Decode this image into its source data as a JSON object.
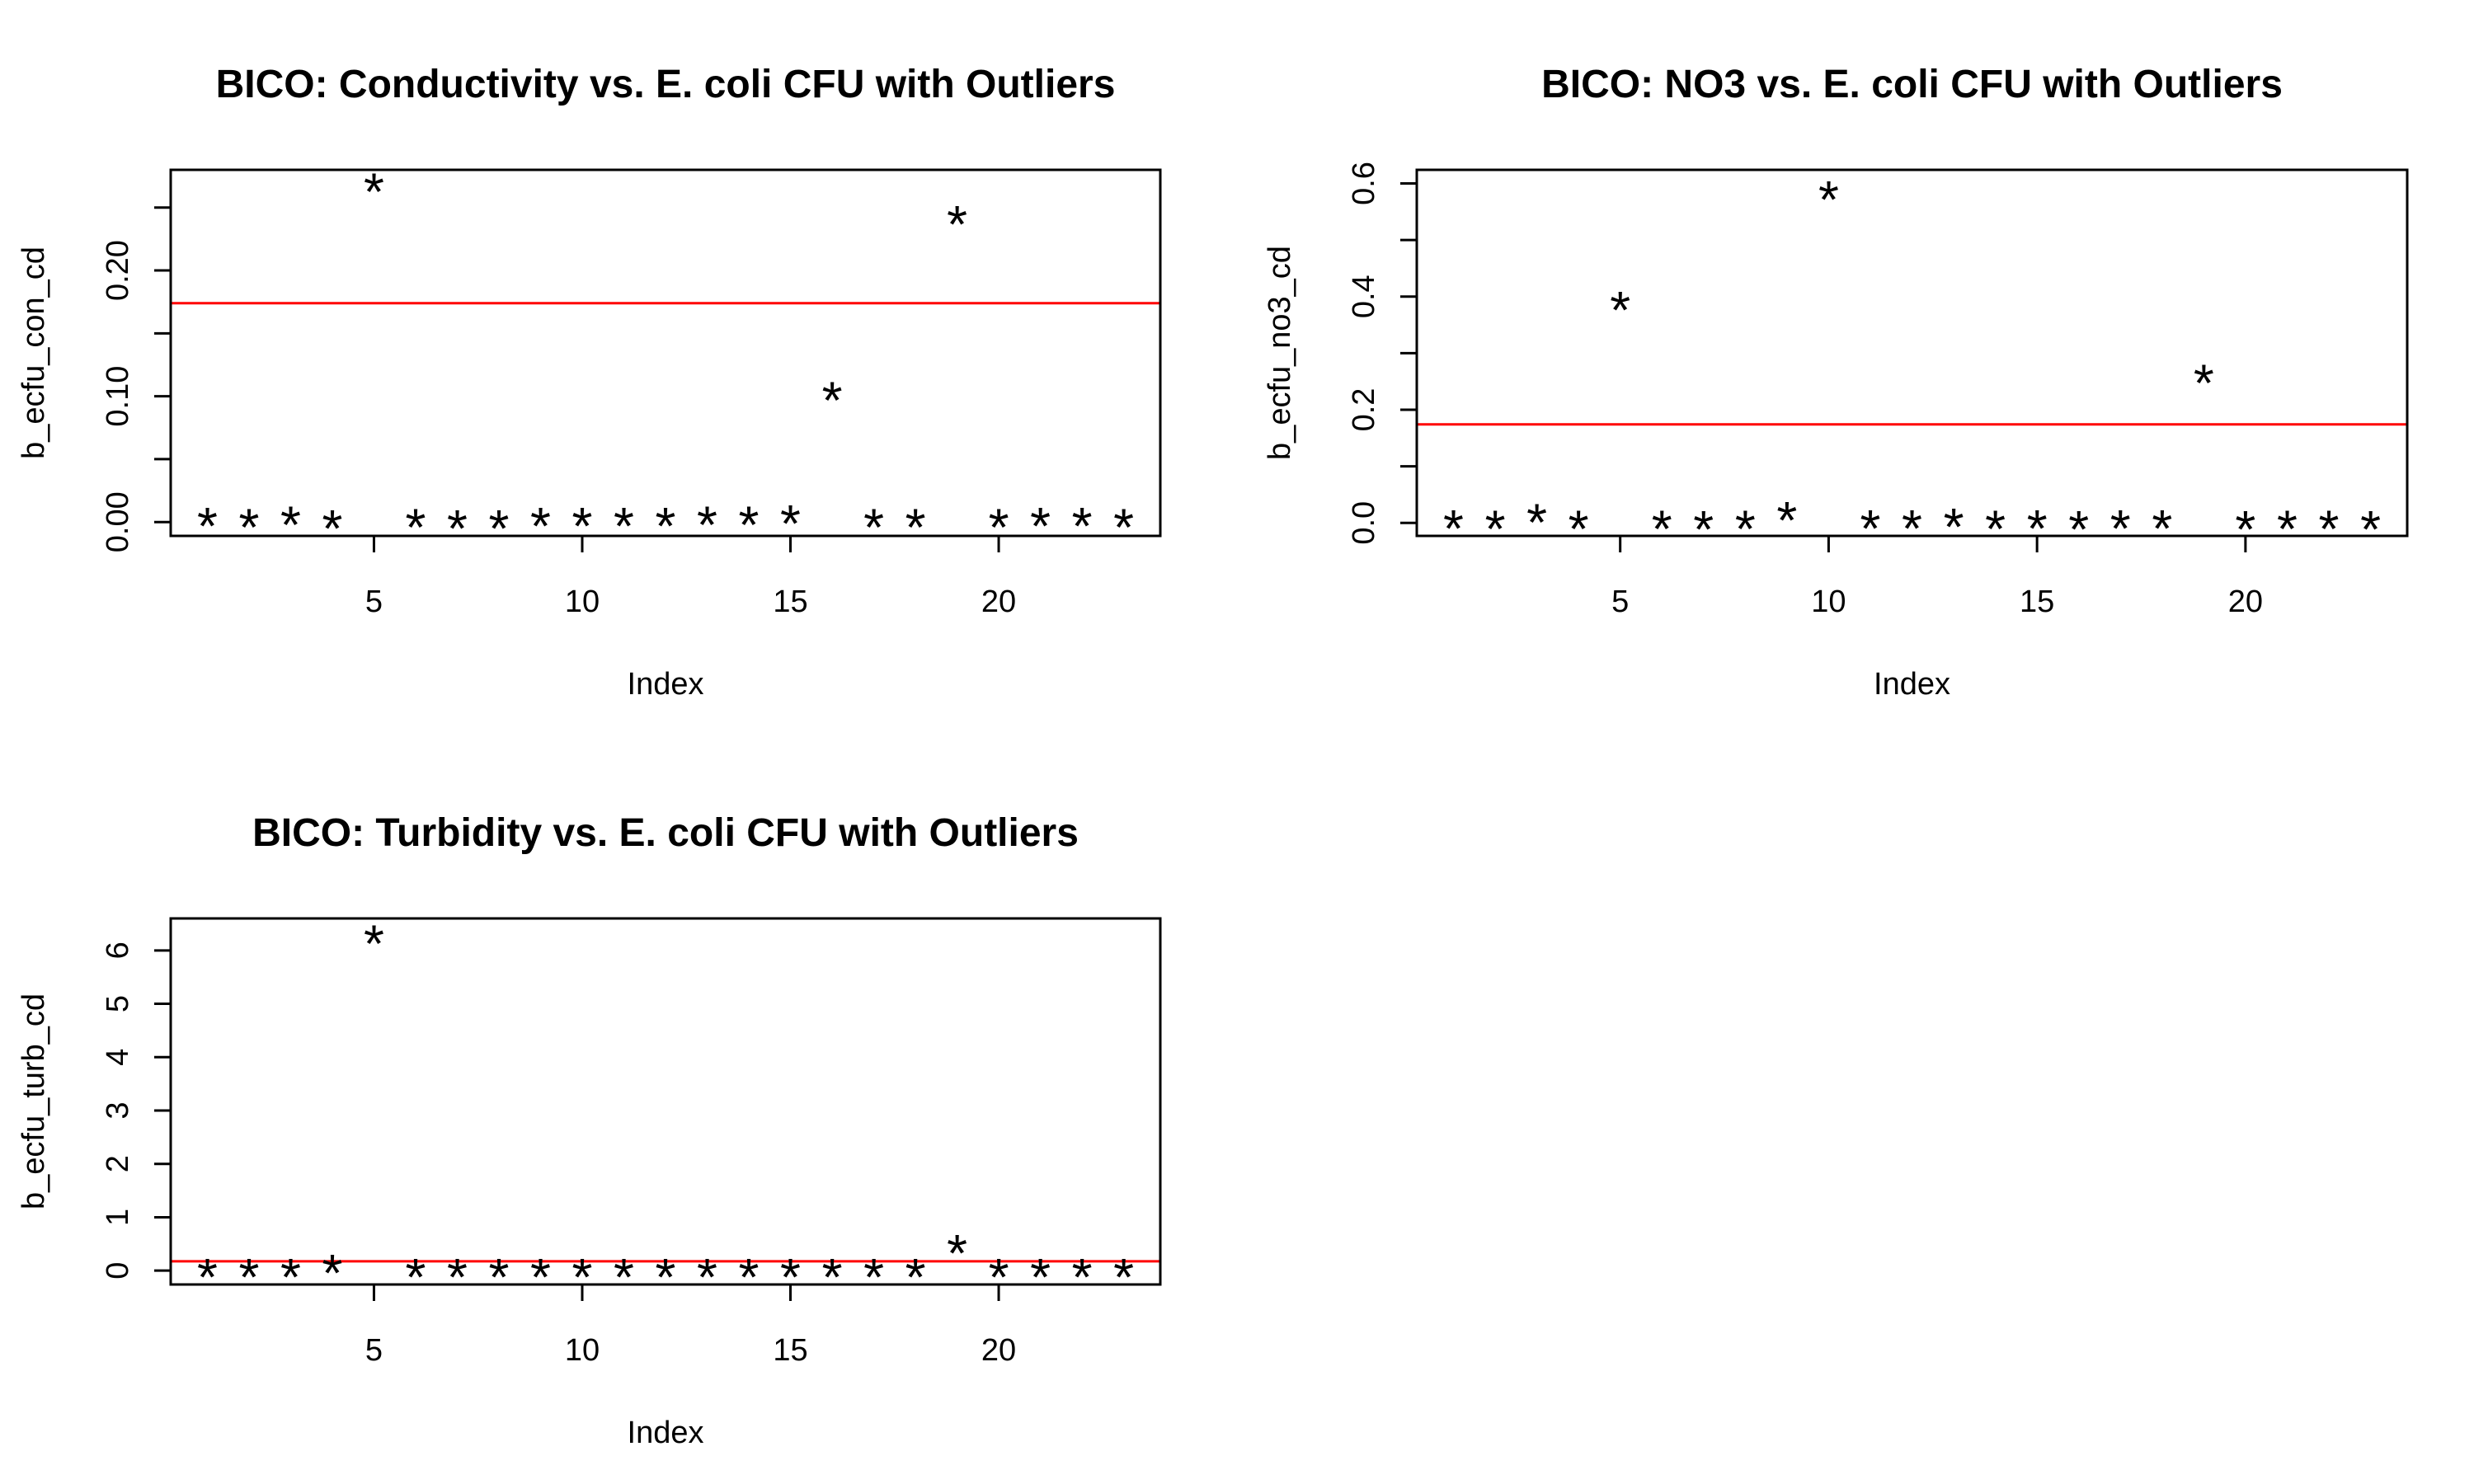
{
  "chart_data": [
    {
      "type": "scatter",
      "title": "BICO: Conductivity vs. E. coli CFU with Outliers",
      "xlabel": "Index",
      "ylabel": "b_ecfu_con_cd",
      "point_symbol": "*",
      "x": [
        1,
        2,
        3,
        4,
        5,
        6,
        7,
        8,
        9,
        10,
        11,
        12,
        13,
        14,
        15,
        16,
        17,
        18,
        19,
        20,
        21,
        22,
        23
      ],
      "y": [
        0.002,
        0.001,
        0.003,
        0.0,
        0.268,
        0.001,
        0.0,
        0.0,
        0.002,
        0.002,
        0.002,
        0.002,
        0.003,
        0.003,
        0.004,
        0.102,
        0.001,
        0.001,
        0.242,
        0.001,
        0.002,
        0.002,
        0.001
      ],
      "xlim": [
        0.12,
        23.88
      ],
      "ylim": [
        -0.011,
        0.28
      ],
      "xticks": [
        5,
        10,
        15,
        20
      ],
      "yticks": [
        0.0,
        0.05,
        0.1,
        0.15,
        0.2,
        0.25
      ],
      "ytick_labels": [
        "0.00",
        "",
        "0.10",
        "",
        "0.20",
        ""
      ],
      "reference_line": {
        "y": 0.174,
        "color": "#ff0000"
      },
      "grid": false
    },
    {
      "type": "scatter",
      "title": "BICO: NO3 vs. E. coli CFU with Outliers",
      "xlabel": "Index",
      "ylabel": "b_ecfu_no3_cd",
      "point_symbol": "*",
      "x": [
        1,
        2,
        3,
        4,
        5,
        6,
        7,
        8,
        9,
        10,
        11,
        12,
        13,
        14,
        15,
        16,
        17,
        18,
        19,
        20,
        21,
        22,
        23
      ],
      "y": [
        0.002,
        0.001,
        0.013,
        0.001,
        0.388,
        0.001,
        0.0,
        0.001,
        0.016,
        0.583,
        0.002,
        0.002,
        0.005,
        0.001,
        0.002,
        0.0,
        0.002,
        0.002,
        0.259,
        0.0,
        0.001,
        0.001,
        0.0
      ],
      "xlim": [
        0.12,
        23.88
      ],
      "ylim": [
        -0.023,
        0.624
      ],
      "xticks": [
        5,
        10,
        15,
        20
      ],
      "yticks": [
        0.0,
        0.1,
        0.2,
        0.3,
        0.4,
        0.5,
        0.6
      ],
      "ytick_labels": [
        "0.0",
        "",
        "0.2",
        "",
        "0.4",
        "",
        "0.6"
      ],
      "reference_line": {
        "y": 0.174,
        "color": "#ff0000"
      },
      "grid": false
    },
    {
      "type": "scatter",
      "title": "BICO: Turbidity vs. E. coli CFU with Outliers",
      "xlabel": "Index",
      "ylabel": "b_ecfu_turb_cd",
      "point_symbol": "*",
      "x": [
        1,
        2,
        3,
        4,
        5,
        6,
        7,
        8,
        9,
        10,
        11,
        12,
        13,
        14,
        15,
        16,
        17,
        18,
        19,
        20,
        21,
        22,
        23
      ],
      "y": [
        0.0,
        0.0,
        0.0,
        0.08,
        6.25,
        0.0,
        0.0,
        0.0,
        0.0,
        0.0,
        0.0,
        0.0,
        0.0,
        0.0,
        0.0,
        0.0,
        0.0,
        0.0,
        0.45,
        0.0,
        0.0,
        0.0,
        0.0
      ],
      "xlim": [
        0.12,
        23.88
      ],
      "ylim": [
        -0.26,
        6.6
      ],
      "xticks": [
        5,
        10,
        15,
        20
      ],
      "yticks": [
        0,
        1,
        2,
        3,
        4,
        5,
        6
      ],
      "ytick_labels": [
        "0",
        "1",
        "2",
        "3",
        "4",
        "5",
        "6"
      ],
      "reference_line": {
        "y": 0.174,
        "color": "#ff0000"
      },
      "grid": false
    }
  ]
}
